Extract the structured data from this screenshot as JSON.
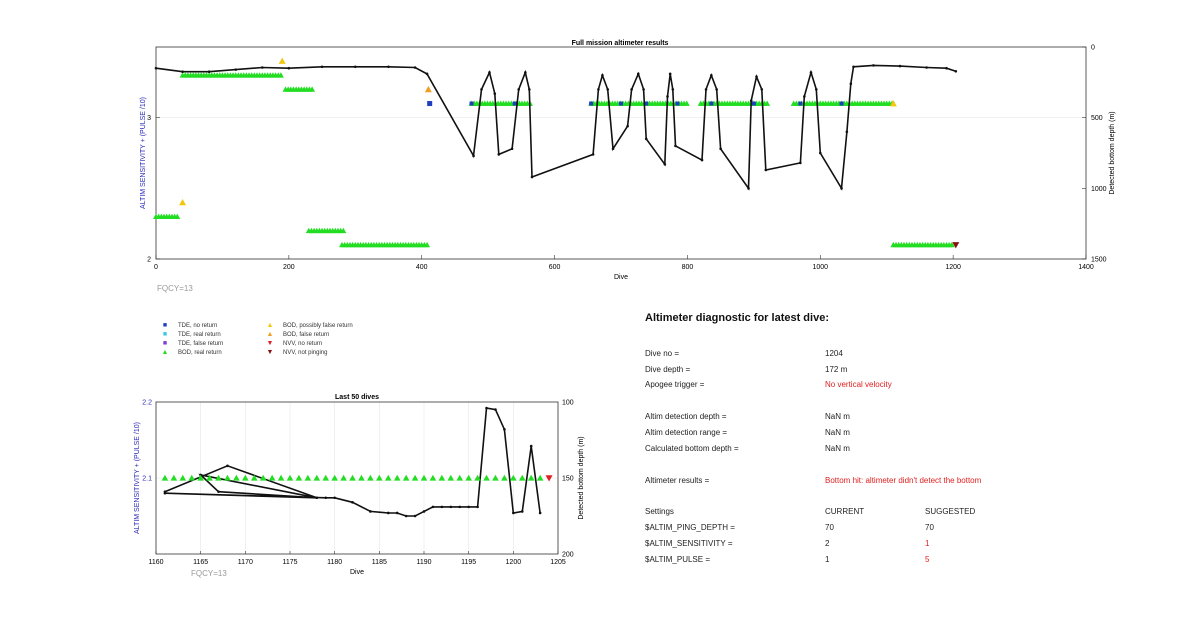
{
  "main_chart": {
    "title": "Full mission altimeter results",
    "xlabel": "Dive",
    "ylabel_left": "ALTIM SENSITIVITY + (PULSE /10)",
    "ylabel_right": "Detected bottom depth (m)",
    "fqcy_label": "FQCY=13"
  },
  "last50_chart": {
    "title": "Last 50 dives",
    "xlabel": "Dive",
    "ylabel_left": "ALTIM SENSITIVITY + (PULSE /10)",
    "ylabel_right": "Detected bottom depth (m)",
    "fqcy_label": "FQCY=13"
  },
  "legend": {
    "items": [
      {
        "label": "TDE, no return",
        "symbol": "■",
        "color": "#1f3fbf"
      },
      {
        "label": "TDE, real return",
        "symbol": "■",
        "color": "#37c8e6"
      },
      {
        "label": "TDE, false return",
        "symbol": "■",
        "color": "#7a3fd1"
      },
      {
        "label": "BOD, real return",
        "symbol": "▲",
        "color": "#22dd22"
      },
      {
        "label": "BOD, possibly false return",
        "symbol": "▲",
        "color": "#f2c80f"
      },
      {
        "label": "BOD, false return",
        "symbol": "▲",
        "color": "#f0a020"
      },
      {
        "label": "NVV, no return",
        "symbol": "▼",
        "color": "#e02020"
      },
      {
        "label": "NVV, not pinging",
        "symbol": "▼",
        "color": "#8b1010"
      }
    ]
  },
  "diagnostic": {
    "title": "Altimeter diagnostic for latest dive:",
    "dive_no_label": "Dive no =",
    "dive_no_value": "1204",
    "dive_depth_label": "Dive depth =",
    "dive_depth_value": "172 m",
    "apogee_label": "Apogee trigger =",
    "apogee_value": "No vertical velocity",
    "altim_det_depth_label": "Altim detection depth =",
    "altim_det_depth_value": "NaN m",
    "altim_det_range_label": "Altim detection range =",
    "altim_det_range_value": "NaN m",
    "calc_bottom_label": "Calculated bottom depth =",
    "calc_bottom_value": "NaN m",
    "results_label": "Altimeter results =",
    "results_value": "Bottom hit: altimeter didn't detect the bottom",
    "settings_label": "Settings",
    "current_label": "CURRENT",
    "suggested_label": "SUGGESTED",
    "settings": [
      {
        "name": "$ALTIM_PING_DEPTH =",
        "current": "70",
        "suggested": "70",
        "changed": false
      },
      {
        "name": "$ALTIM_SENSITIVITY =",
        "current": "2",
        "suggested": "1",
        "changed": true
      },
      {
        "name": "$ALTIM_PULSE =",
        "current": "1",
        "suggested": "5",
        "changed": true
      }
    ]
  },
  "chart_data": [
    {
      "type": "scatter",
      "title": "Full mission altimeter results",
      "xlabel": "Dive",
      "ylabel": "ALTIM SENSITIVITY + (PULSE /10)",
      "y2label": "Detected bottom depth (m)",
      "xlim": [
        0,
        1400
      ],
      "ylim": [
        2,
        3.5
      ],
      "y2lim": [
        1500,
        0
      ],
      "y2_reversed": true,
      "grid": true,
      "x_ticks": [
        0,
        200,
        400,
        600,
        800,
        1000,
        1200,
        1400
      ],
      "y_ticks": [
        2,
        3
      ],
      "y2_ticks": [
        0,
        500,
        1000,
        1500
      ],
      "setting_segments": [
        {
          "x": [
            40,
            190
          ],
          "y": 3.3,
          "kind": "BOD, real return",
          "color": "#22dd22"
        },
        {
          "x": [
            195,
            235
          ],
          "y": 3.2,
          "kind": "BOD, real return",
          "color": "#22dd22"
        },
        {
          "x": [
            0,
            35
          ],
          "y": 2.3,
          "kind": "BOD, real return",
          "color": "#22dd22"
        },
        {
          "x": [
            230,
            285
          ],
          "y": 2.2,
          "kind": "BOD, real return",
          "color": "#22dd22"
        },
        {
          "x": [
            280,
            410
          ],
          "y": 2.1,
          "kind": "BOD, real return",
          "color": "#22dd22"
        },
        {
          "x": [
            475,
            565
          ],
          "y": 3.1,
          "kind": "BOD, real return",
          "color": "#22dd22"
        },
        {
          "x": [
            655,
            800
          ],
          "y": 3.1,
          "kind": "BOD, real return",
          "color": "#22dd22"
        },
        {
          "x": [
            820,
            920
          ],
          "y": 3.1,
          "kind": "BOD, real return",
          "color": "#22dd22"
        },
        {
          "x": [
            960,
            1110
          ],
          "y": 3.1,
          "kind": "BOD, real return",
          "color": "#22dd22"
        },
        {
          "x": [
            1110,
            1200
          ],
          "y": 2.1,
          "kind": "BOD, real return",
          "color": "#22dd22"
        }
      ],
      "special_points": [
        {
          "x": 190,
          "y": 3.4,
          "kind": "BOD, possibly false return",
          "color": "#f2c80f"
        },
        {
          "x": 40,
          "y": 2.4,
          "kind": "BOD, possibly false return",
          "color": "#f2c80f"
        },
        {
          "x": 410,
          "y": 3.2,
          "kind": "BOD, false return",
          "color": "#f0a020"
        },
        {
          "x": 1110,
          "y": 3.1,
          "kind": "BOD, possibly false return",
          "color": "#f2c80f"
        },
        {
          "x": 412,
          "y": 3.1,
          "kind": "TDE, no return",
          "color": "#1f3fbf"
        },
        {
          "x": 1204,
          "y": 2.1,
          "kind": "NVV, not pinging",
          "color": "#8b1010"
        }
      ],
      "bottom_depth_series": {
        "name": "Detected bottom depth",
        "points": [
          [
            0,
            150
          ],
          [
            40,
            175
          ],
          [
            80,
            175
          ],
          [
            120,
            160
          ],
          [
            160,
            145
          ],
          [
            200,
            150
          ],
          [
            250,
            140
          ],
          [
            300,
            140
          ],
          [
            350,
            140
          ],
          [
            390,
            145
          ],
          [
            408,
            190
          ],
          [
            478,
            770
          ],
          [
            490,
            300
          ],
          [
            502,
            180
          ],
          [
            510,
            330
          ],
          [
            516,
            760
          ],
          [
            536,
            720
          ],
          [
            546,
            300
          ],
          [
            556,
            180
          ],
          [
            562,
            300
          ],
          [
            566,
            920
          ],
          [
            658,
            760
          ],
          [
            666,
            300
          ],
          [
            672,
            200
          ],
          [
            680,
            300
          ],
          [
            688,
            720
          ],
          [
            710,
            560
          ],
          [
            716,
            300
          ],
          [
            726,
            190
          ],
          [
            734,
            300
          ],
          [
            738,
            650
          ],
          [
            766,
            830
          ],
          [
            770,
            350
          ],
          [
            774,
            190
          ],
          [
            778,
            300
          ],
          [
            782,
            700
          ],
          [
            822,
            800
          ],
          [
            828,
            300
          ],
          [
            836,
            200
          ],
          [
            844,
            300
          ],
          [
            850,
            720
          ],
          [
            892,
            1000
          ],
          [
            896,
            380
          ],
          [
            904,
            210
          ],
          [
            912,
            300
          ],
          [
            918,
            870
          ],
          [
            970,
            820
          ],
          [
            976,
            350
          ],
          [
            986,
            180
          ],
          [
            994,
            300
          ],
          [
            1000,
            750
          ],
          [
            1032,
            1000
          ],
          [
            1040,
            600
          ],
          [
            1046,
            260
          ],
          [
            1050,
            140
          ],
          [
            1080,
            130
          ],
          [
            1120,
            135
          ],
          [
            1160,
            145
          ],
          [
            1190,
            150
          ],
          [
            1204,
            172
          ]
        ]
      }
    },
    {
      "type": "scatter",
      "title": "Last 50 dives",
      "xlabel": "Dive",
      "ylabel": "ALTIM SENSITIVITY + (PULSE /10)",
      "y2label": "Detected bottom depth (m)",
      "xlim": [
        1160,
        1205
      ],
      "ylim": [
        2,
        2.2
      ],
      "y2lim": [
        200,
        100
      ],
      "y2_reversed": true,
      "grid": true,
      "x_ticks": [
        1160,
        1165,
        1170,
        1175,
        1180,
        1185,
        1190,
        1195,
        1200,
        1205
      ],
      "y_ticks": [
        2.1,
        2.2
      ],
      "y2_ticks": [
        100,
        150,
        200
      ],
      "bod_points": {
        "x": [
          1161,
          1162,
          1163,
          1164,
          1165,
          1166,
          1167,
          1168,
          1169,
          1170,
          1171,
          1172,
          1173,
          1174,
          1175,
          1176,
          1177,
          1178,
          1179,
          1180,
          1181,
          1182,
          1183,
          1184,
          1185,
          1186,
          1187,
          1188,
          1189,
          1190,
          1191,
          1192,
          1193,
          1194,
          1195,
          1196,
          1197,
          1198,
          1199,
          1200,
          1201,
          1202,
          1203
        ],
        "y": 2.1,
        "color": "#22dd22"
      },
      "nvv_point": {
        "x": 1204,
        "y": 2.1,
        "color": "#e02020"
      },
      "depth_line": {
        "x": [
          1161,
          1168,
          1178,
          1167,
          1165,
          1178,
          1161,
          1179,
          1180,
          1182,
          1184,
          1186,
          1187,
          1188,
          1189,
          1190,
          1191,
          1192,
          1193,
          1194,
          1195,
          1196,
          1197,
          1198,
          1199,
          1200,
          1201,
          1202,
          1203
        ],
        "y": [
          159,
          142,
          163,
          159,
          148,
          163,
          160,
          163,
          163,
          166,
          172,
          173,
          173,
          175,
          175,
          172,
          169,
          169,
          169,
          169,
          169,
          169,
          104,
          105,
          118,
          173,
          172,
          129,
          173
        ]
      }
    }
  ]
}
